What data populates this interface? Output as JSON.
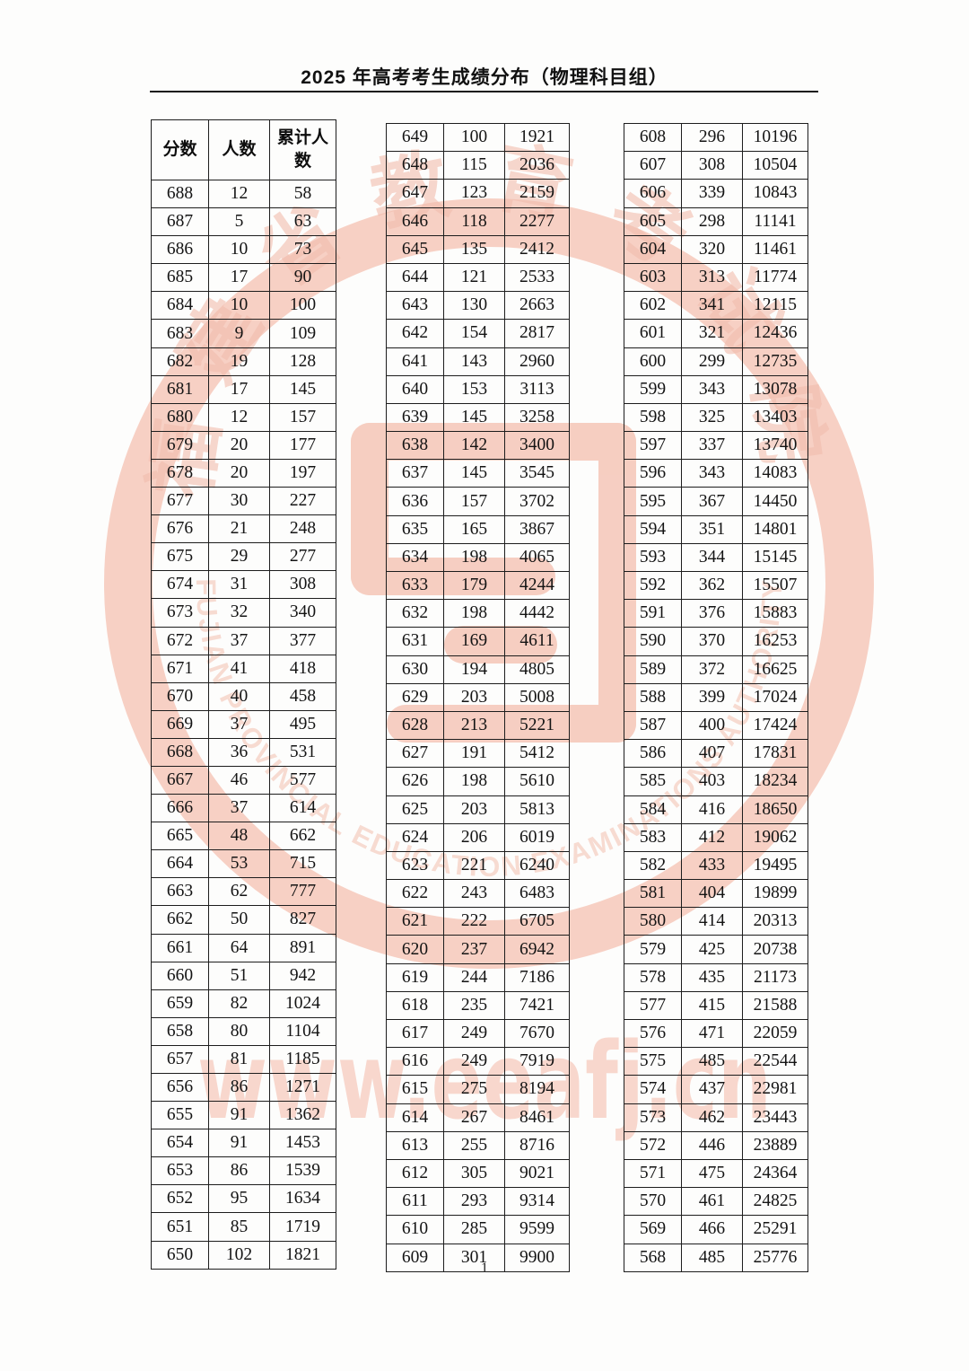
{
  "header": {
    "title": "2025 年高考考生成绩分布（物理科目组）"
  },
  "watermark": {
    "seal_text_cn": "福建省教育考试院",
    "seal_text_en": "FUJIAN PROVINCIAL EDUCATION EXAMINATIONS AUTHORITY",
    "url_text": "www.eeafj.cn",
    "seal_color": "#f5c3b4",
    "text_color": "#eeab98"
  },
  "table": {
    "headers": [
      "分数",
      "人数",
      "累计人数"
    ],
    "columns": [
      {
        "rows": [
          [
            688,
            12,
            58
          ],
          [
            687,
            5,
            63
          ],
          [
            686,
            10,
            73
          ],
          [
            685,
            17,
            90
          ],
          [
            684,
            10,
            100
          ],
          [
            683,
            9,
            109
          ],
          [
            682,
            19,
            128
          ],
          [
            681,
            17,
            145
          ],
          [
            680,
            12,
            157
          ],
          [
            679,
            20,
            177
          ],
          [
            678,
            20,
            197
          ],
          [
            677,
            30,
            227
          ],
          [
            676,
            21,
            248
          ],
          [
            675,
            29,
            277
          ],
          [
            674,
            31,
            308
          ],
          [
            673,
            32,
            340
          ],
          [
            672,
            37,
            377
          ],
          [
            671,
            41,
            418
          ],
          [
            670,
            40,
            458
          ],
          [
            669,
            37,
            495
          ],
          [
            668,
            36,
            531
          ],
          [
            667,
            46,
            577
          ],
          [
            666,
            37,
            614
          ],
          [
            665,
            48,
            662
          ],
          [
            664,
            53,
            715
          ],
          [
            663,
            62,
            777
          ],
          [
            662,
            50,
            827
          ],
          [
            661,
            64,
            891
          ],
          [
            660,
            51,
            942
          ],
          [
            659,
            82,
            1024
          ],
          [
            658,
            80,
            1104
          ],
          [
            657,
            81,
            1185
          ],
          [
            656,
            86,
            1271
          ],
          [
            655,
            91,
            1362
          ],
          [
            654,
            91,
            1453
          ],
          [
            653,
            86,
            1539
          ],
          [
            652,
            95,
            1634
          ],
          [
            651,
            85,
            1719
          ],
          [
            650,
            102,
            1821
          ]
        ]
      },
      {
        "rows": [
          [
            649,
            100,
            1921
          ],
          [
            648,
            115,
            2036
          ],
          [
            647,
            123,
            2159
          ],
          [
            646,
            118,
            2277
          ],
          [
            645,
            135,
            2412
          ],
          [
            644,
            121,
            2533
          ],
          [
            643,
            130,
            2663
          ],
          [
            642,
            154,
            2817
          ],
          [
            641,
            143,
            2960
          ],
          [
            640,
            153,
            3113
          ],
          [
            639,
            145,
            3258
          ],
          [
            638,
            142,
            3400
          ],
          [
            637,
            145,
            3545
          ],
          [
            636,
            157,
            3702
          ],
          [
            635,
            165,
            3867
          ],
          [
            634,
            198,
            4065
          ],
          [
            633,
            179,
            4244
          ],
          [
            632,
            198,
            4442
          ],
          [
            631,
            169,
            4611
          ],
          [
            630,
            194,
            4805
          ],
          [
            629,
            203,
            5008
          ],
          [
            628,
            213,
            5221
          ],
          [
            627,
            191,
            5412
          ],
          [
            626,
            198,
            5610
          ],
          [
            625,
            203,
            5813
          ],
          [
            624,
            206,
            6019
          ],
          [
            623,
            221,
            6240
          ],
          [
            622,
            243,
            6483
          ],
          [
            621,
            222,
            6705
          ],
          [
            620,
            237,
            6942
          ],
          [
            619,
            244,
            7186
          ],
          [
            618,
            235,
            7421
          ],
          [
            617,
            249,
            7670
          ],
          [
            616,
            249,
            7919
          ],
          [
            615,
            275,
            8194
          ],
          [
            614,
            267,
            8461
          ],
          [
            613,
            255,
            8716
          ],
          [
            612,
            305,
            9021
          ],
          [
            611,
            293,
            9314
          ],
          [
            610,
            285,
            9599
          ],
          [
            609,
            301,
            9900
          ]
        ]
      },
      {
        "rows": [
          [
            608,
            296,
            10196
          ],
          [
            607,
            308,
            10504
          ],
          [
            606,
            339,
            10843
          ],
          [
            605,
            298,
            11141
          ],
          [
            604,
            320,
            11461
          ],
          [
            603,
            313,
            11774
          ],
          [
            602,
            341,
            12115
          ],
          [
            601,
            321,
            12436
          ],
          [
            600,
            299,
            12735
          ],
          [
            599,
            343,
            13078
          ],
          [
            598,
            325,
            13403
          ],
          [
            597,
            337,
            13740
          ],
          [
            596,
            343,
            14083
          ],
          [
            595,
            367,
            14450
          ],
          [
            594,
            351,
            14801
          ],
          [
            593,
            344,
            15145
          ],
          [
            592,
            362,
            15507
          ],
          [
            591,
            376,
            15883
          ],
          [
            590,
            370,
            16253
          ],
          [
            589,
            372,
            16625
          ],
          [
            588,
            399,
            17024
          ],
          [
            587,
            400,
            17424
          ],
          [
            586,
            407,
            17831
          ],
          [
            585,
            403,
            18234
          ],
          [
            584,
            416,
            18650
          ],
          [
            583,
            412,
            19062
          ],
          [
            582,
            433,
            19495
          ],
          [
            581,
            404,
            19899
          ],
          [
            580,
            414,
            20313
          ],
          [
            579,
            425,
            20738
          ],
          [
            578,
            435,
            21173
          ],
          [
            577,
            415,
            21588
          ],
          [
            576,
            471,
            22059
          ],
          [
            575,
            485,
            22544
          ],
          [
            574,
            437,
            22981
          ],
          [
            573,
            462,
            23443
          ],
          [
            572,
            446,
            23889
          ],
          [
            571,
            475,
            24364
          ],
          [
            570,
            461,
            24825
          ],
          [
            569,
            466,
            25291
          ],
          [
            568,
            485,
            25776
          ]
        ]
      }
    ]
  },
  "footer": {
    "page_number": "1"
  }
}
